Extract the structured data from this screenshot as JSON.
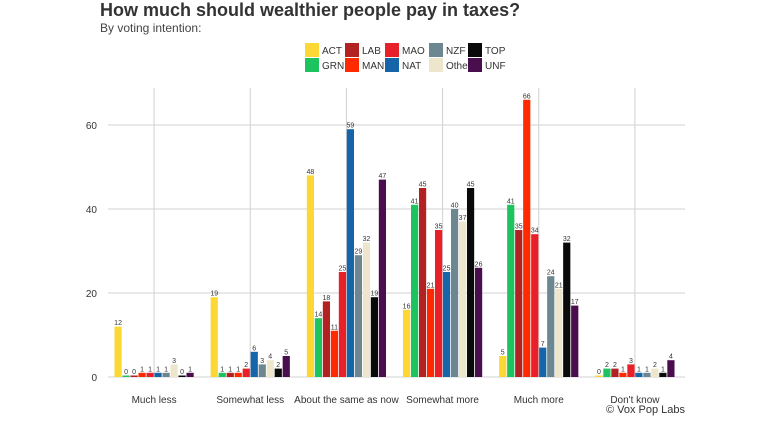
{
  "chart_data": {
    "type": "bar",
    "title": "How much should wealthier people pay in taxes?",
    "subtitle": "By voting intention:",
    "credit": "© Vox Pop Labs",
    "categories": [
      "Much less",
      "Somewhat less",
      "About the same as now",
      "Somewhat more",
      "Much more",
      "Don't know"
    ],
    "ylim": [
      0,
      66
    ],
    "yticks": [
      0,
      20,
      40,
      60
    ],
    "grid": true,
    "legend_position": "top",
    "series": [
      {
        "name": "ACT",
        "color": "#FDD835",
        "values": [
          12,
          19,
          48,
          16,
          5,
          0
        ]
      },
      {
        "name": "GRN",
        "color": "#1DC35F",
        "values": [
          0,
          1,
          14,
          41,
          41,
          2
        ]
      },
      {
        "name": "LAB",
        "color": "#B22222",
        "values": [
          0,
          1,
          18,
          45,
          35,
          2
        ]
      },
      {
        "name": "MAN",
        "color": "#FF2A00",
        "values": [
          1,
          1,
          11,
          21,
          66,
          1
        ]
      },
      {
        "name": "MAO",
        "color": "#E8202A",
        "values": [
          1,
          2,
          25,
          35,
          34,
          3
        ]
      },
      {
        "name": "NAT",
        "color": "#1565A8",
        "values": [
          1,
          6,
          59,
          25,
          7,
          1
        ]
      },
      {
        "name": "NZF",
        "color": "#6C8790",
        "values": [
          1,
          3,
          29,
          40,
          24,
          1
        ]
      },
      {
        "name": "Other",
        "color": "#EEE6CC",
        "values": [
          3,
          4,
          32,
          37,
          21,
          2
        ]
      },
      {
        "name": "TOP",
        "color": "#0A0A0A",
        "values": [
          0,
          2,
          19,
          45,
          32,
          1
        ]
      },
      {
        "name": "UNF",
        "color": "#4A0E4E",
        "values": [
          1,
          5,
          47,
          26,
          17,
          4
        ]
      }
    ]
  }
}
